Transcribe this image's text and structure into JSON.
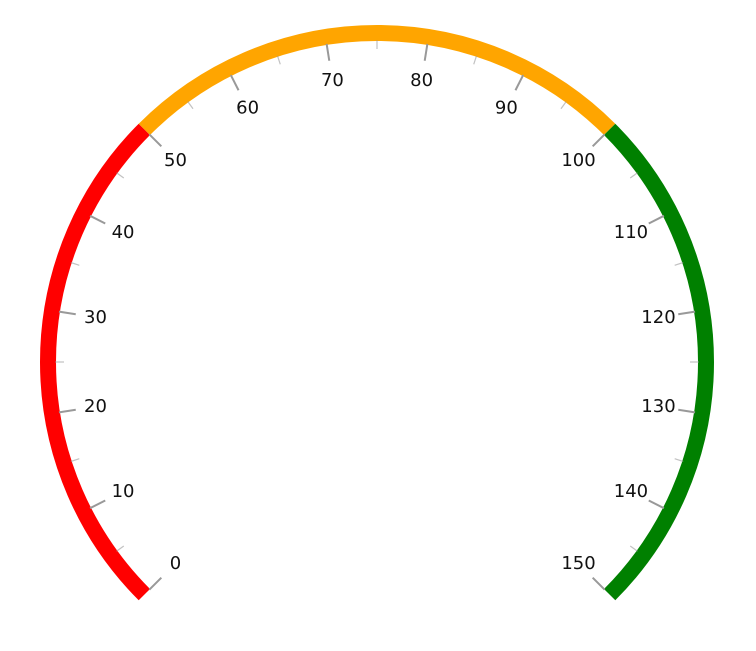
{
  "chart_data": {
    "type": "gauge",
    "min": 0,
    "max": 150,
    "major_interval": 10,
    "minor_interval": 5,
    "start_angle_deg": 225,
    "sweep_deg": 270,
    "tick_labels": [
      "0",
      "10",
      "20",
      "30",
      "40",
      "50",
      "60",
      "70",
      "80",
      "90",
      "100",
      "110",
      "120",
      "130",
      "140",
      "150"
    ],
    "ranges": [
      {
        "start": 0,
        "end": 50,
        "color": "#ff0000"
      },
      {
        "start": 50,
        "end": 100,
        "color": "#ffa500"
      },
      {
        "start": 100,
        "end": 150,
        "color": "#008000"
      }
    ],
    "tick_color": "#999999",
    "label_color": "#111111"
  }
}
